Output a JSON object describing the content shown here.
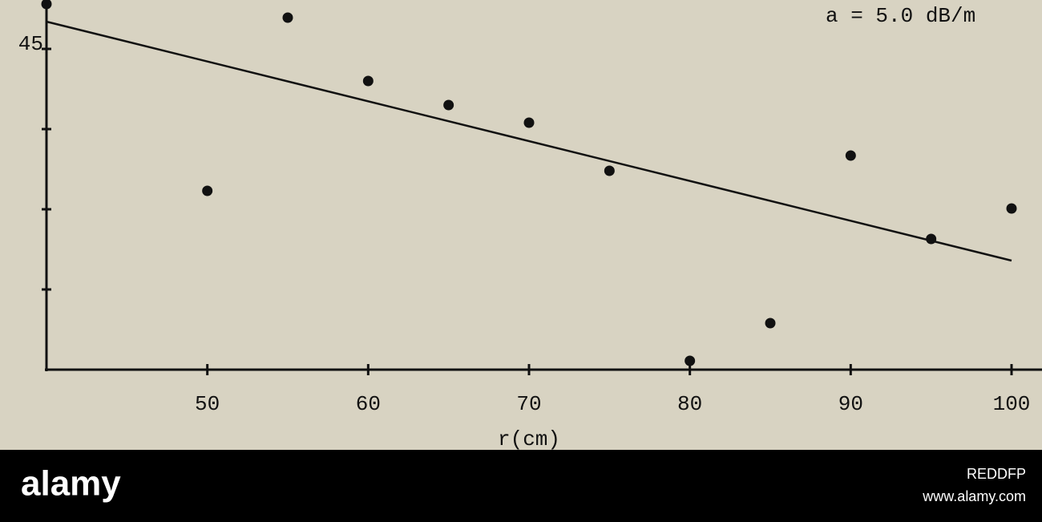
{
  "chart_data": {
    "type": "scatter",
    "annotation": "a = 5.0 dB/m",
    "x_label": "r(cm)",
    "xlim": [
      40,
      100
    ],
    "xticks": [
      50,
      60,
      70,
      80,
      90,
      100
    ],
    "ylim": [
      41,
      45.61
    ],
    "yticks": [
      45
    ],
    "yticks_unlabeled": [
      42,
      43,
      44
    ],
    "points": {
      "color": "#111111",
      "x": [
        40,
        50,
        55,
        60,
        65,
        70,
        75,
        80,
        85,
        90,
        95,
        100
      ],
      "values": [
        45.56,
        43.23,
        45.39,
        44.6,
        44.3,
        44.08,
        43.48,
        41.11,
        41.58,
        43.67,
        42.63,
        43.01
      ]
    },
    "fit": {
      "color": "#111111",
      "x": [
        40,
        100
      ],
      "values": [
        45.34,
        42.36
      ]
    }
  },
  "watermark": {
    "logo": "alamy",
    "id": "REDDFP",
    "url": "www.alamy.com"
  }
}
